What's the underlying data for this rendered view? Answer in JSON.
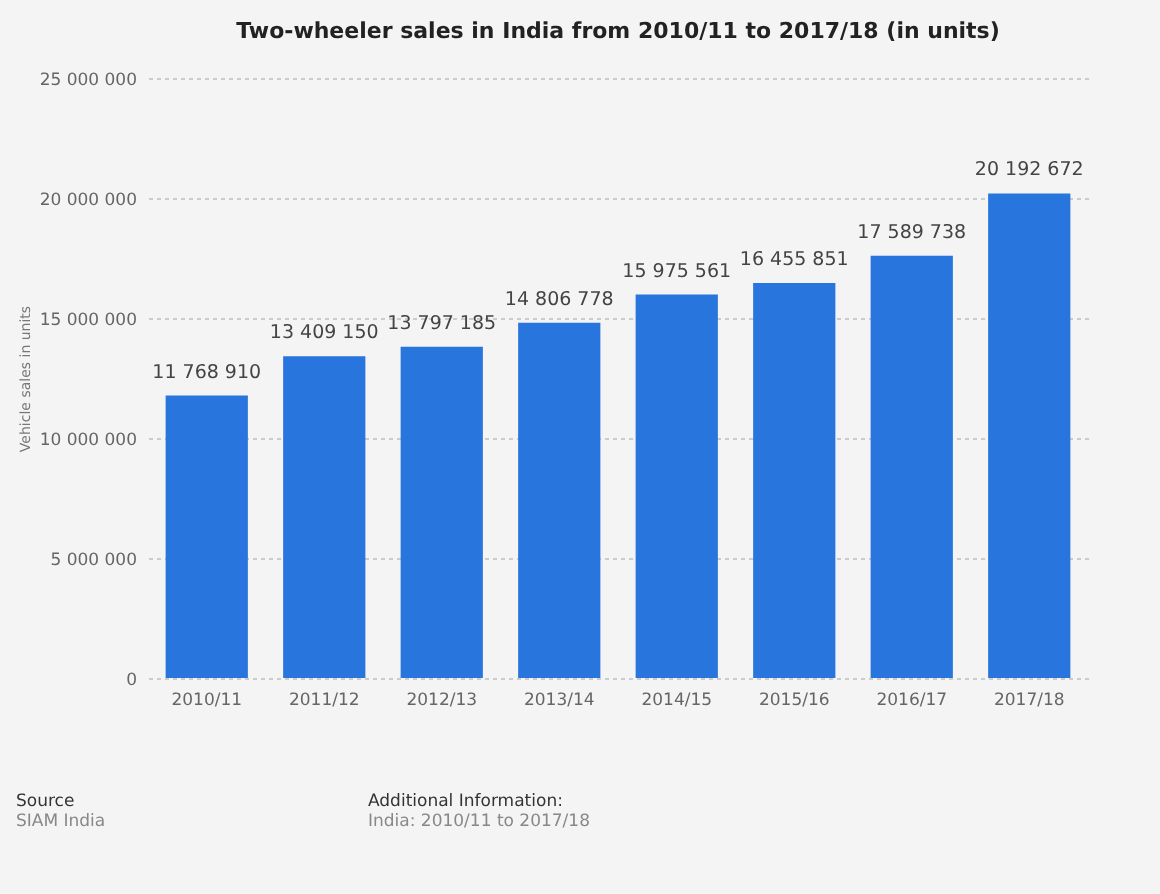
{
  "chart_data": {
    "type": "bar",
    "title": "Two-wheeler sales in India from 2010/11 to 2017/18 (in units)",
    "ylabel": "Vehicle sales in units",
    "categories": [
      "2010/11",
      "2011/12",
      "2012/13",
      "2013/14",
      "2014/15",
      "2015/16",
      "2016/17",
      "2017/18"
    ],
    "values": [
      11768910,
      13409150,
      13797185,
      14806778,
      15975561,
      16455851,
      17589738,
      20192672
    ],
    "value_labels": [
      "11 768 910",
      "13 409 150",
      "13 797 185",
      "14 806 778",
      "15 975 561",
      "16 455 851",
      "17 589 738",
      "20 192 672"
    ],
    "color": "#2876dd",
    "ylim": [
      0,
      25000000
    ],
    "yticks": [
      {
        "value": 0,
        "label": "0"
      },
      {
        "value": 5000000,
        "label": "5 000 000"
      },
      {
        "value": 10000000,
        "label": "10 000 000"
      },
      {
        "value": 15000000,
        "label": "15 000 000"
      },
      {
        "value": 20000000,
        "label": "20 000 000"
      },
      {
        "value": 25000000,
        "label": "25 000 000"
      }
    ],
    "grid": "y",
    "annotations": [
      "Source",
      "SIAM India",
      "Additional Information:",
      "India: 2010/11 to 2017/18"
    ]
  }
}
